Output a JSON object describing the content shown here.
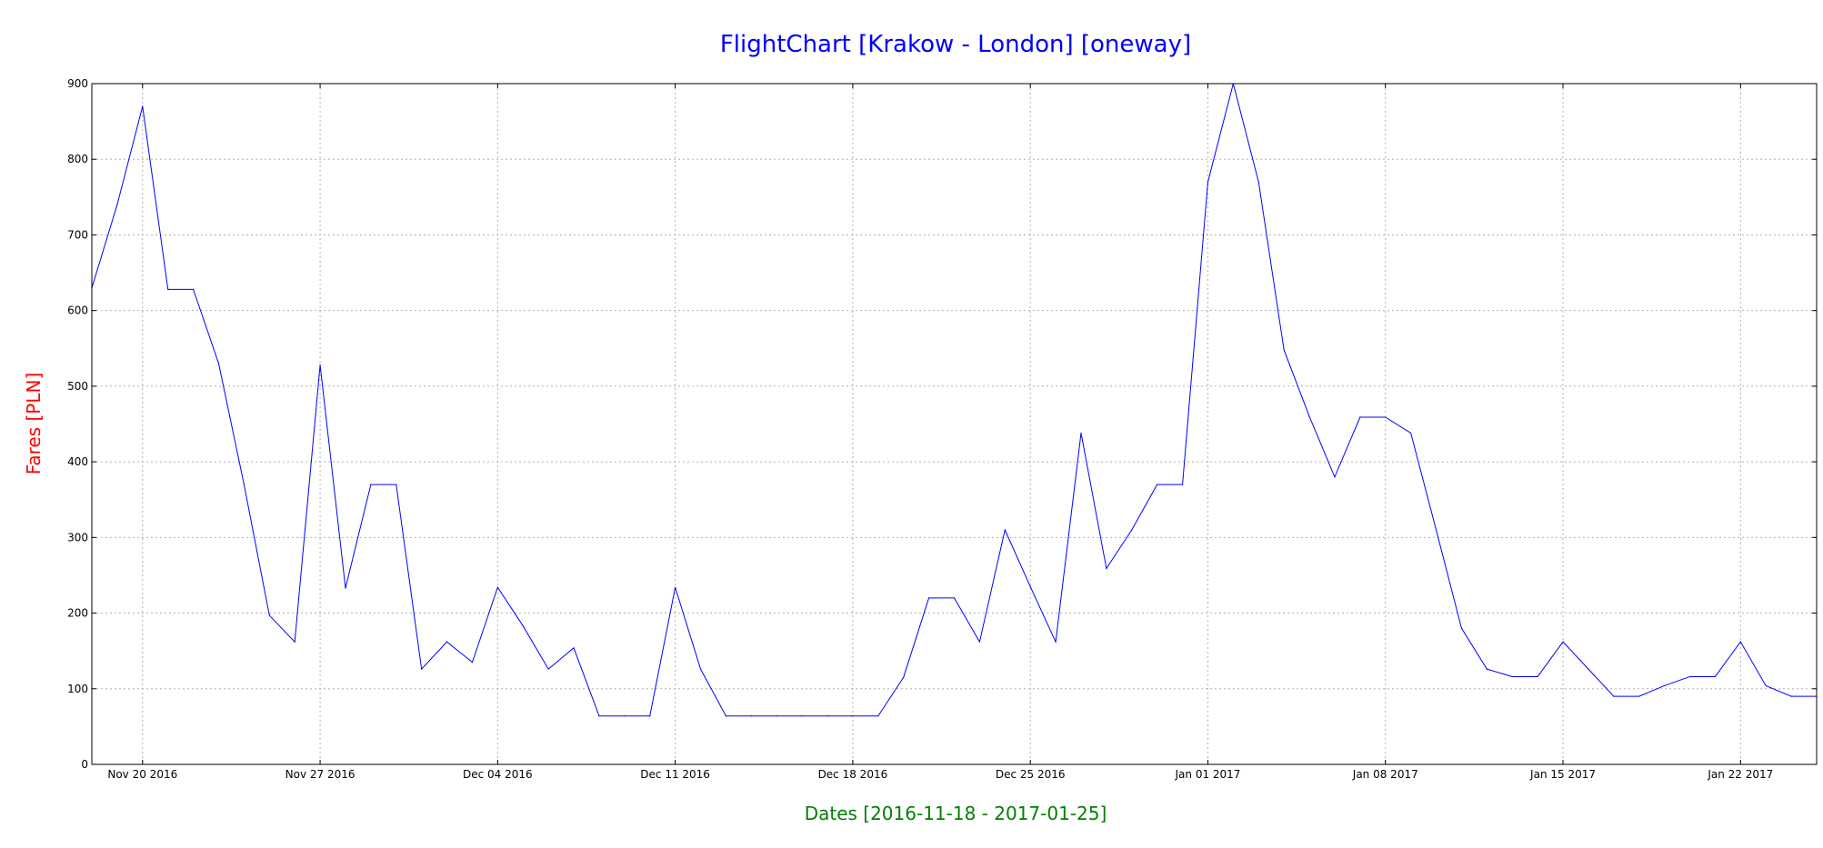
{
  "chart_data": {
    "type": "line",
    "title": "FlightChart [Krakow - London] [oneway]",
    "xlabel": "Dates [2016-11-18 - 2017-01-25]",
    "ylabel": "Fares [PLN]",
    "xlim": [
      "2016-11-18",
      "2017-01-25"
    ],
    "ylim": [
      0,
      900
    ],
    "yticks": [
      0,
      100,
      200,
      300,
      400,
      500,
      600,
      700,
      800,
      900
    ],
    "xticks": [
      {
        "date": "2016-11-20",
        "label": "Nov 20 2016"
      },
      {
        "date": "2016-11-27",
        "label": "Nov 27 2016"
      },
      {
        "date": "2016-12-04",
        "label": "Dec 04 2016"
      },
      {
        "date": "2016-12-11",
        "label": "Dec 11 2016"
      },
      {
        "date": "2016-12-18",
        "label": "Dec 18 2016"
      },
      {
        "date": "2016-12-25",
        "label": "Dec 25 2016"
      },
      {
        "date": "2017-01-01",
        "label": "Jan 01 2017"
      },
      {
        "date": "2017-01-08",
        "label": "Jan 08 2017"
      },
      {
        "date": "2017-01-15",
        "label": "Jan 15 2017"
      },
      {
        "date": "2017-01-22",
        "label": "Jan 22 2017"
      }
    ],
    "grid": true,
    "colors": {
      "line": "#0000ff",
      "title": "#0000ff",
      "xlabel": "#008000",
      "ylabel": "#ff0000",
      "grid": "#b0b0b0"
    },
    "series": [
      {
        "x": [
          "2016-11-18",
          "2016-11-19",
          "2016-11-20",
          "2016-11-21",
          "2016-11-22",
          "2016-11-23",
          "2016-11-24",
          "2016-11-25",
          "2016-11-26",
          "2016-11-27",
          "2016-11-28",
          "2016-11-29",
          "2016-11-30",
          "2016-12-01",
          "2016-12-02",
          "2016-12-03",
          "2016-12-04",
          "2016-12-05",
          "2016-12-06",
          "2016-12-07",
          "2016-12-08",
          "2016-12-09",
          "2016-12-10",
          "2016-12-11",
          "2016-12-12",
          "2016-12-13",
          "2016-12-14",
          "2016-12-15",
          "2016-12-16",
          "2016-12-17",
          "2016-12-18",
          "2016-12-19",
          "2016-12-20",
          "2016-12-21",
          "2016-12-22",
          "2016-12-23",
          "2016-12-24",
          "2016-12-25",
          "2016-12-26",
          "2016-12-27",
          "2016-12-28",
          "2016-12-29",
          "2016-12-30",
          "2016-12-31",
          "2017-01-01",
          "2017-01-02",
          "2017-01-03",
          "2017-01-04",
          "2017-01-05",
          "2017-01-06",
          "2017-01-07",
          "2017-01-08",
          "2017-01-09",
          "2017-01-10",
          "2017-01-11",
          "2017-01-12",
          "2017-01-13",
          "2017-01-14",
          "2017-01-15",
          "2017-01-16",
          "2017-01-17",
          "2017-01-18",
          "2017-01-19",
          "2017-01-20",
          "2017-01-21",
          "2017-01-22",
          "2017-01-23",
          "2017-01-24",
          "2017-01-25"
        ],
        "values": [
          630,
          740,
          870,
          628,
          628,
          530,
          370,
          197,
          162,
          528,
          233,
          370,
          370,
          126,
          162,
          135,
          234,
          183,
          126,
          154,
          64,
          64,
          64,
          234,
          126,
          64,
          64,
          64,
          64,
          64,
          64,
          64,
          115,
          220,
          220,
          162,
          310,
          235,
          162,
          438,
          259,
          310,
          370,
          370,
          770,
          900,
          770,
          548,
          460,
          380,
          459,
          459,
          438,
          310,
          180,
          126,
          116,
          116,
          162,
          126,
          90,
          90,
          104,
          116,
          116,
          162,
          104,
          90,
          90
        ]
      }
    ]
  }
}
